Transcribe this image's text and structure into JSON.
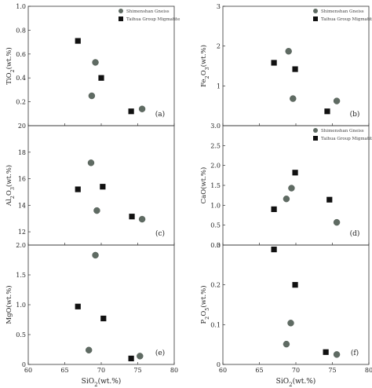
{
  "chart_data": [
    {
      "type": "scatter",
      "panel_label": "(a)",
      "ylabel": "TiO2(wt.%)",
      "xlim": [
        60,
        80
      ],
      "ylim": [
        0,
        1.0
      ],
      "yticks": [
        "0.2",
        "0.4",
        "0.6",
        "0.8",
        "1.0"
      ],
      "xticks": [],
      "xlabel": "",
      "legend": [
        "Shimenshan Gneiss",
        "Taihua Group Migmatite"
      ],
      "series": [
        {
          "name": "Shimenshan Gneiss",
          "marker": "circle",
          "points": [
            [
              69.2,
              0.53
            ],
            [
              68.7,
              0.25
            ],
            [
              75.6,
              0.14
            ]
          ]
        },
        {
          "name": "Taihua Group Migmatite",
          "marker": "square",
          "points": [
            [
              66.8,
              0.71
            ],
            [
              70.0,
              0.4
            ],
            [
              74.1,
              0.12
            ]
          ]
        }
      ]
    },
    {
      "type": "scatter",
      "panel_label": "(b)",
      "ylabel": "Fe2O3(wt.%)",
      "xlim": [
        60,
        80
      ],
      "ylim": [
        0,
        3
      ],
      "yticks": [
        "1",
        "2",
        "3"
      ],
      "xticks": [],
      "xlabel": "",
      "legend": [
        "Shimenshan Gneiss",
        "Taihua Group Migmatite"
      ],
      "series": [
        {
          "name": "Shimenshan Gneiss",
          "marker": "circle",
          "points": [
            [
              69.0,
              1.87
            ],
            [
              69.6,
              0.68
            ],
            [
              75.6,
              0.62
            ]
          ]
        },
        {
          "name": "Taihua Group Migmatite",
          "marker": "square",
          "points": [
            [
              67.0,
              1.58
            ],
            [
              69.9,
              1.42
            ],
            [
              74.3,
              0.36
            ]
          ]
        }
      ]
    },
    {
      "type": "scatter",
      "panel_label": "(c)",
      "ylabel": "Al2O3(wt.%)",
      "xlim": [
        60,
        80
      ],
      "ylim": [
        11,
        20
      ],
      "yticks": [
        "12",
        "14",
        "16",
        "18",
        "20"
      ],
      "xticks": [],
      "xlabel": "",
      "series": [
        {
          "name": "Shimenshan Gneiss",
          "marker": "circle",
          "points": [
            [
              68.6,
              17.2
            ],
            [
              69.4,
              13.6
            ],
            [
              75.6,
              12.95
            ]
          ]
        },
        {
          "name": "Taihua Group Migmatite",
          "marker": "square",
          "points": [
            [
              66.8,
              15.2
            ],
            [
              70.2,
              15.4
            ],
            [
              74.2,
              13.15
            ]
          ]
        }
      ]
    },
    {
      "type": "scatter",
      "panel_label": "(d)",
      "ylabel": "CaO(wt.%)",
      "xlim": [
        60,
        80
      ],
      "ylim": [
        0,
        3.0
      ],
      "yticks": [
        "0",
        "0.5",
        "1.0",
        "1.5",
        "2.0",
        "2.5",
        "3.0"
      ],
      "xticks": [],
      "xlabel": "",
      "legend": [
        "Shimenshan Gneiss",
        "Taihua Group Migmatite"
      ],
      "series": [
        {
          "name": "Shimenshan Gneiss",
          "marker": "circle",
          "points": [
            [
              68.7,
              1.16
            ],
            [
              69.4,
              1.43
            ],
            [
              75.6,
              0.57
            ]
          ]
        },
        {
          "name": "Taihua Group Migmatite",
          "marker": "square",
          "points": [
            [
              67.0,
              0.9
            ],
            [
              69.9,
              1.82
            ],
            [
              74.6,
              1.14
            ]
          ]
        }
      ]
    },
    {
      "type": "scatter",
      "panel_label": "(e)",
      "ylabel": "MgO(wt.%)",
      "xlim": [
        60,
        80
      ],
      "ylim": [
        0,
        2.0
      ],
      "yticks": [
        "0",
        "0.5",
        "1.0",
        "1.5",
        "2.0"
      ],
      "xticks": [
        "60",
        "65",
        "70",
        "75",
        "80"
      ],
      "xlabel": "SiO2(wt.%)",
      "series": [
        {
          "name": "Shimenshan Gneiss",
          "marker": "circle",
          "points": [
            [
              69.2,
              1.83
            ],
            [
              68.3,
              0.24
            ],
            [
              75.3,
              0.14
            ]
          ]
        },
        {
          "name": "Taihua Group Migmatite",
          "marker": "square",
          "points": [
            [
              66.8,
              0.97
            ],
            [
              70.3,
              0.77
            ],
            [
              74.1,
              0.1
            ]
          ]
        }
      ]
    },
    {
      "type": "scatter",
      "panel_label": "(f)",
      "ylabel": "P2O5(wt.%)",
      "xlim": [
        60,
        80
      ],
      "ylim": [
        0,
        0.3
      ],
      "yticks": [
        "0",
        "0.1",
        "0.2",
        "0.3"
      ],
      "xticks": [
        "60",
        "65",
        "70",
        "75",
        "80"
      ],
      "xlabel": "SiO2(wt.%)",
      "series": [
        {
          "name": "Shimenshan Gneiss",
          "marker": "circle",
          "points": [
            [
              69.3,
              0.104
            ],
            [
              68.7,
              0.051
            ],
            [
              75.6,
              0.025
            ]
          ]
        },
        {
          "name": "Taihua Group Migmatite",
          "marker": "square",
          "points": [
            [
              67.0,
              0.289
            ],
            [
              69.9,
              0.2
            ],
            [
              74.1,
              0.031
            ]
          ]
        }
      ]
    }
  ],
  "colors": {
    "circle": "#5f6b63",
    "square": "#111111",
    "axis": "#333333"
  }
}
